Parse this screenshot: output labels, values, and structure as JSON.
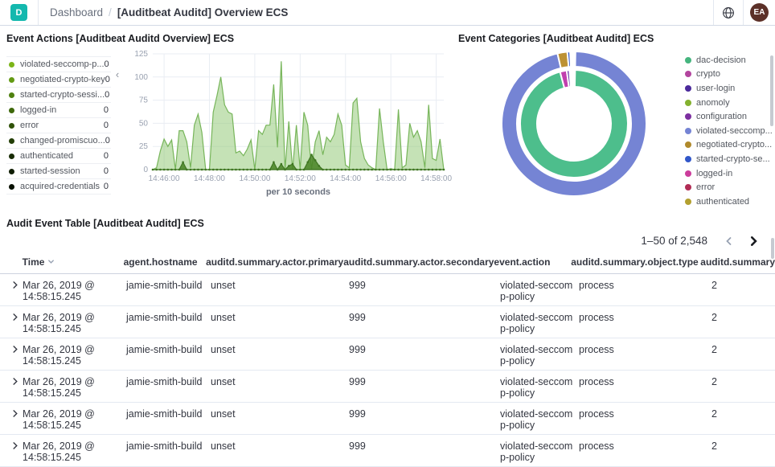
{
  "header": {
    "logo_letter": "D",
    "breadcrumb_root": "Dashboard",
    "breadcrumb_sep": "/",
    "title": "[Auditbeat Auditd] Overview ECS",
    "avatar_initials": "EA"
  },
  "panels": {
    "event_actions": {
      "title": "Event Actions [Auditbeat Auditd Overview] ECS",
      "legend": [
        {
          "label": "violated-seccomp-p...",
          "value": "0",
          "color": "#7cb518"
        },
        {
          "label": "negotiated-crypto-key",
          "value": "0",
          "color": "#639a13"
        },
        {
          "label": "started-crypto-sessi...",
          "value": "0",
          "color": "#4f810f"
        },
        {
          "label": "logged-in",
          "value": "0",
          "color": "#3e680b"
        },
        {
          "label": "error",
          "value": "0",
          "color": "#2f5208"
        },
        {
          "label": "changed-promiscuo...",
          "value": "0",
          "color": "#233e06"
        },
        {
          "label": "authenticated",
          "value": "0",
          "color": "#182c04"
        },
        {
          "label": "started-session",
          "value": "0",
          "color": "#0f1d02"
        },
        {
          "label": "acquired-credentials",
          "value": "0",
          "color": "#081001"
        }
      ]
    },
    "event_categories": {
      "title": "Event Categories [Auditbeat Auditd] ECS",
      "legend": [
        {
          "label": "dac-decision",
          "color": "#45b57e"
        },
        {
          "label": "crypto",
          "color": "#b2459e"
        },
        {
          "label": "user-login",
          "color": "#4b2a9b"
        },
        {
          "label": "anomoly",
          "color": "#84b12f"
        },
        {
          "label": "configuration",
          "color": "#7c2fa0"
        },
        {
          "label": "violated-seccomp...",
          "color": "#7584d4"
        },
        {
          "label": "negotiated-crypto...",
          "color": "#b08a2c"
        },
        {
          "label": "started-crypto-se...",
          "color": "#3157c9"
        },
        {
          "label": "logged-in",
          "color": "#cb3d9b"
        },
        {
          "label": "error",
          "color": "#b12c55"
        },
        {
          "label": "authenticated",
          "color": "#b3a030"
        }
      ]
    }
  },
  "chart_data": [
    {
      "type": "area",
      "title": "Event Actions [Auditbeat Auditd Overview] ECS",
      "xlabel": "per 10 seconds",
      "ylabel": "",
      "ylim": [
        0,
        125
      ],
      "y_ticks": [
        0,
        25,
        50,
        75,
        100,
        125
      ],
      "x_start": "14:45:30",
      "x_step_seconds": 10,
      "x_ticks": [
        "14:46:00",
        "14:48:00",
        "14:50:00",
        "14:52:00",
        "14:54:00",
        "14:56:00",
        "14:58:00"
      ],
      "x_tick_indices": [
        3,
        15,
        27,
        39,
        51,
        63,
        75
      ],
      "grid": true,
      "series": [
        {
          "name": "event-actions-light",
          "stroke": "#77b55a",
          "fill": "rgba(140,198,110,0.5)",
          "values": [
            0,
            2,
            20,
            33,
            25,
            32,
            0,
            42,
            42,
            30,
            2,
            48,
            60,
            40,
            0,
            0,
            62,
            80,
            100,
            70,
            62,
            60,
            18,
            20,
            15,
            22,
            32,
            0,
            42,
            38,
            48,
            48,
            92,
            24,
            117,
            0,
            52,
            0,
            48,
            0,
            62,
            48,
            0,
            30,
            42,
            16,
            35,
            30,
            38,
            60,
            48,
            5,
            2,
            72,
            77,
            30,
            12,
            5,
            2,
            0,
            66,
            30,
            0,
            1,
            0,
            65,
            2,
            5,
            50,
            35,
            42,
            30,
            2,
            70,
            12,
            10,
            33,
            0
          ]
        },
        {
          "name": "event-actions-dark",
          "stroke": "#3f7522",
          "fill": "rgba(70,130,35,0.85)",
          "values": [
            0,
            0,
            0,
            0,
            0,
            0,
            0,
            0,
            8,
            0,
            0,
            0,
            0,
            0,
            0,
            0,
            0,
            0,
            0,
            0,
            0,
            0,
            0,
            0,
            0,
            0,
            0,
            0,
            0,
            0,
            0,
            0,
            8,
            0,
            6,
            0,
            4,
            6,
            0,
            0,
            0,
            8,
            16,
            10,
            4,
            0,
            0,
            0,
            0,
            0,
            0,
            0,
            0,
            0,
            0,
            0,
            0,
            0,
            0,
            0,
            0,
            0,
            0,
            0,
            0,
            0,
            0,
            0,
            0,
            0,
            0,
            0,
            0,
            0,
            0,
            0,
            0,
            0
          ]
        }
      ]
    },
    {
      "type": "pie",
      "title": "Event Categories [Auditbeat Auditd] ECS",
      "legend_position": "right",
      "rings": [
        {
          "name": "inner",
          "slices": [
            {
              "label": "dac-decision",
              "pct": 95.5,
              "color": "#4dbe8c"
            },
            {
              "label": "crypto",
              "pct": 2.0,
              "color": "#c13fae"
            },
            {
              "label": "user-login",
              "pct": 0.8,
              "color": "#5b2ea6"
            }
          ]
        },
        {
          "name": "outer",
          "slices": [
            {
              "label": "violated-seccomp-policy",
              "pct": 96.0,
              "color": "#7584d4"
            },
            {
              "label": "negotiated-crypto-key",
              "pct": 2.2,
              "color": "#bd9234"
            },
            {
              "label": "started-crypto-session",
              "pct": 0.6,
              "color": "#3157c9"
            }
          ]
        }
      ]
    }
  ],
  "table": {
    "title": "Audit Event Table [Auditbeat Auditd] ECS",
    "pagination_label": "1–50 of 2,548",
    "columns": {
      "time": "Time",
      "hostname": "agent.hostname",
      "actor_primary": "auditd.summary.actor.primary",
      "actor_secondary": "auditd.summary.actor.secondary",
      "action": "event.action",
      "object_type": "auditd.summary.object.type",
      "summary": "auditd.summary"
    },
    "rows": [
      {
        "time": "Mar 26, 2019 @ 14:58:15.245",
        "hostname": "jamie-smith-build",
        "actor_primary": "unset",
        "actor_secondary": "999",
        "action": "violated-seccomp-policy",
        "object_type": "process",
        "summary": "2"
      },
      {
        "time": "Mar 26, 2019 @ 14:58:15.245",
        "hostname": "jamie-smith-build",
        "actor_primary": "unset",
        "actor_secondary": "999",
        "action": "violated-seccomp-policy",
        "object_type": "process",
        "summary": "2"
      },
      {
        "time": "Mar 26, 2019 @ 14:58:15.245",
        "hostname": "jamie-smith-build",
        "actor_primary": "unset",
        "actor_secondary": "999",
        "action": "violated-seccomp-policy",
        "object_type": "process",
        "summary": "2"
      },
      {
        "time": "Mar 26, 2019 @ 14:58:15.245",
        "hostname": "jamie-smith-build",
        "actor_primary": "unset",
        "actor_secondary": "999",
        "action": "violated-seccomp-policy",
        "object_type": "process",
        "summary": "2"
      },
      {
        "time": "Mar 26, 2019 @ 14:58:15.245",
        "hostname": "jamie-smith-build",
        "actor_primary": "unset",
        "actor_secondary": "999",
        "action": "violated-seccomp-policy",
        "object_type": "process",
        "summary": "2"
      },
      {
        "time": "Mar 26, 2019 @ 14:58:15.245",
        "hostname": "jamie-smith-build",
        "actor_primary": "unset",
        "actor_secondary": "999",
        "action": "violated-seccomp-policy",
        "object_type": "process",
        "summary": "2"
      }
    ]
  }
}
